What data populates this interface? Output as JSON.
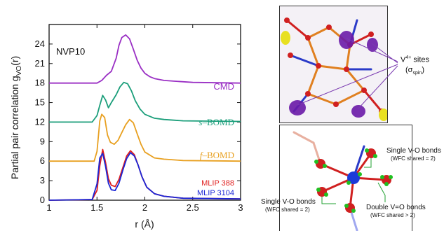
{
  "chart_data": {
    "type": "line",
    "panel_label": "NVP10",
    "xlabel": "r (Å)",
    "ylabel": "Partial pair correlation g",
    "ylabel_sub": "VO",
    "ylabel_tail": "(r)",
    "xlim": [
      1,
      3
    ],
    "ylim": [
      0,
      27
    ],
    "xticks": [
      "1",
      "1.5",
      "2",
      "2.5",
      "3"
    ],
    "xtick_values": [
      1,
      1.5,
      2,
      2.5,
      3
    ],
    "yticks": [
      "0",
      "3",
      "6",
      "9",
      "12",
      "15",
      "18",
      "21",
      "24"
    ],
    "ytick_values": [
      0,
      3,
      6,
      9,
      12,
      15,
      18,
      21,
      24
    ],
    "series": [
      {
        "name": "CMD",
        "color": "#9a2fc4",
        "x": [
          1.0,
          1.5,
          1.55,
          1.6,
          1.65,
          1.7,
          1.73,
          1.76,
          1.8,
          1.84,
          1.88,
          1.92,
          1.96,
          2.0,
          2.05,
          2.1,
          2.2,
          2.3,
          2.5,
          3.0
        ],
        "y": [
          18.0,
          18.0,
          18.4,
          19.2,
          19.8,
          21.8,
          23.8,
          25.0,
          25.4,
          24.8,
          23.2,
          21.5,
          20.3,
          19.5,
          19.0,
          18.7,
          18.4,
          18.3,
          18.1,
          18.0
        ]
      },
      {
        "name": "s–BOMD",
        "color": "#1a9e7a",
        "x": [
          1.0,
          1.45,
          1.5,
          1.53,
          1.56,
          1.59,
          1.62,
          1.65,
          1.7,
          1.74,
          1.78,
          1.82,
          1.86,
          1.9,
          1.95,
          2.0,
          2.1,
          2.2,
          2.4,
          3.0
        ],
        "y": [
          12.0,
          12.0,
          13.0,
          14.6,
          16.1,
          15.4,
          14.2,
          15.0,
          16.2,
          17.4,
          18.1,
          17.9,
          16.8,
          15.3,
          14.0,
          13.2,
          12.6,
          12.4,
          12.2,
          12.1
        ]
      },
      {
        "name": "f–BOMD",
        "color": "#e8a020",
        "x": [
          1.0,
          1.47,
          1.5,
          1.53,
          1.55,
          1.58,
          1.61,
          1.64,
          1.68,
          1.72,
          1.76,
          1.8,
          1.84,
          1.88,
          1.92,
          1.96,
          2.0,
          2.1,
          2.2,
          2.4,
          3.0
        ],
        "y": [
          6.0,
          6.0,
          7.5,
          12.2,
          13.2,
          12.7,
          10.0,
          8.9,
          8.6,
          9.2,
          10.4,
          11.6,
          12.4,
          11.9,
          10.2,
          8.6,
          7.4,
          6.5,
          6.3,
          6.1,
          6.0
        ]
      },
      {
        "name": "MLIP 388",
        "color": "#e02020",
        "x": [
          1.0,
          1.45,
          1.5,
          1.53,
          1.56,
          1.59,
          1.62,
          1.65,
          1.69,
          1.73,
          1.77,
          1.81,
          1.85,
          1.89,
          1.93,
          1.97,
          2.02,
          2.1,
          2.2,
          2.4,
          3.0
        ],
        "y": [
          0.0,
          0.1,
          1.5,
          5.3,
          7.8,
          5.8,
          3.3,
          2.3,
          2.1,
          3.2,
          5.0,
          6.8,
          7.6,
          7.0,
          5.4,
          3.6,
          2.0,
          1.0,
          0.6,
          0.3,
          0.2
        ]
      },
      {
        "name": "MLIP 3104",
        "color": "#1a25d6",
        "x": [
          1.0,
          1.45,
          1.5,
          1.53,
          1.56,
          1.59,
          1.62,
          1.65,
          1.69,
          1.73,
          1.77,
          1.81,
          1.85,
          1.89,
          1.93,
          1.97,
          2.02,
          2.1,
          2.2,
          2.4,
          3.0
        ],
        "y": [
          0.0,
          0.1,
          2.5,
          6.5,
          7.2,
          5.2,
          2.6,
          1.6,
          1.5,
          2.6,
          4.6,
          6.4,
          7.3,
          6.8,
          5.4,
          3.6,
          2.0,
          1.0,
          0.6,
          0.3,
          0.2
        ]
      }
    ]
  },
  "labels": {
    "cmd": "CMD",
    "s_bomd_prefix": "s",
    "s_bomd_suffix": "–BOMD",
    "f_bomd_prefix": "f",
    "f_bomd_suffix": "–BOMD",
    "mlip388": "MLIP 388",
    "mlip3104": "MLIP 3104"
  },
  "structure_labels": {
    "v4_sites": "V",
    "v4_sup": "4+",
    "v4_tail": " sites",
    "sigma": "(σ",
    "sigma_sub": "spin",
    "sigma_tail": ")",
    "single_vo_top": "Single V-O bonds",
    "single_vo_top_sub": "(WFC shared = 2)",
    "single_vo_left": "Single V-O bonds",
    "single_vo_left_sub": "(WFC shared = 2)",
    "double_vo": "Double V=O bonds",
    "double_vo_sub": "(WFC shared > 2)"
  }
}
